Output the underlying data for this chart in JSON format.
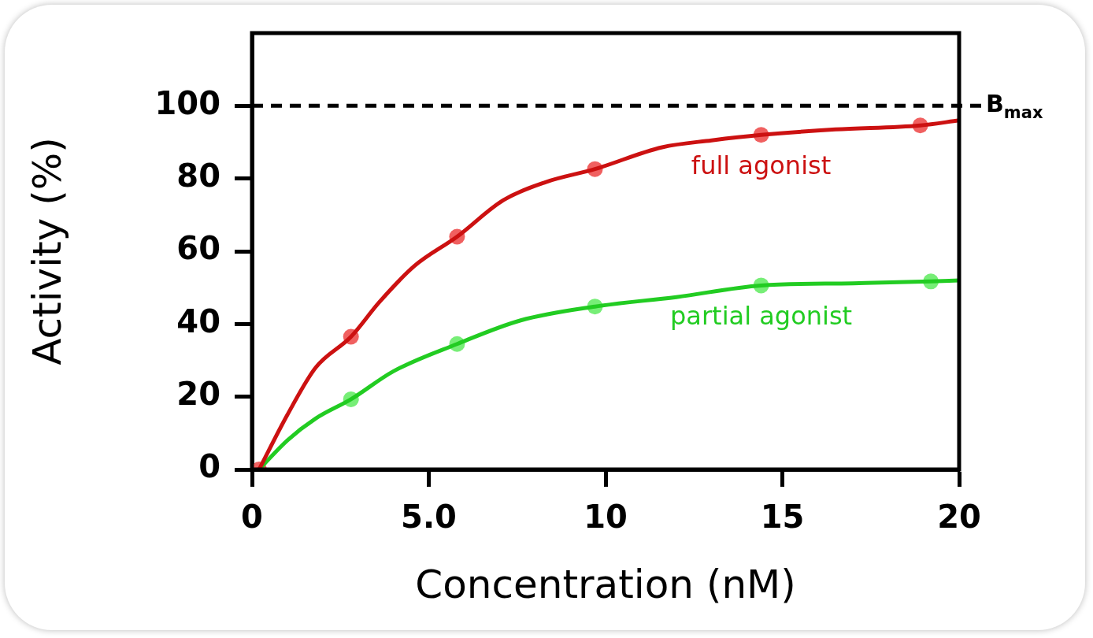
{
  "chart_data": {
    "type": "line",
    "xlabel": "Concentration (nM)",
    "ylabel": "Activity (%)",
    "xlim": [
      0,
      20
    ],
    "xticks": [
      0,
      {
        "value": 5,
        "label": "5.0"
      },
      10,
      15,
      20
    ],
    "ylim": [
      0,
      120
    ],
    "yticks": [
      0,
      20,
      40,
      60,
      80,
      100
    ],
    "grid": false,
    "legend": false,
    "marker": "none",
    "series": [
      {
        "name": "full agonist",
        "color": "#cc1111",
        "x": [
          0.2,
          1.0,
          1.8,
          2.8,
          3.6,
          4.6,
          5.8,
          7.1,
          8.3,
          9.7,
          11.6,
          13.0,
          14.4,
          16.5,
          18.9,
          20
        ],
        "values": [
          0,
          15,
          28,
          36.5,
          46,
          56,
          64,
          74,
          79,
          82.6,
          88.6,
          90.5,
          92,
          93.5,
          94.6,
          96
        ]
      },
      {
        "name": "partial agonist",
        "color": "#22cc22",
        "x": [
          0.2,
          1.0,
          1.8,
          2.8,
          4.0,
          5.8,
          7.6,
          9.7,
          12.0,
          14.4,
          17.0,
          19.2,
          20
        ],
        "values": [
          0,
          8,
          14,
          19.3,
          27,
          34.5,
          41,
          44.8,
          47.4,
          50.6,
          51.2,
          51.7,
          52
        ]
      },
      {
        "type": "scatter",
        "marker": "circle",
        "color": "#f06060",
        "x": [
          0.2,
          2.8,
          5.8,
          9.7,
          14.4,
          18.9
        ],
        "values": [
          0,
          36.5,
          64,
          82.6,
          92,
          94.6
        ]
      },
      {
        "type": "scatter",
        "marker": "circle",
        "color": "#77ee77",
        "x": [
          2.8,
          5.8,
          9.7,
          14.4,
          19.2
        ],
        "values": [
          19.3,
          34.5,
          44.8,
          50.6,
          51.7
        ]
      }
    ],
    "ref_lines": [
      {
        "axis": "y",
        "value": 100,
        "label": "B$_{max}$",
        "color": "#000000",
        "line_style": "dashed"
      }
    ]
  }
}
